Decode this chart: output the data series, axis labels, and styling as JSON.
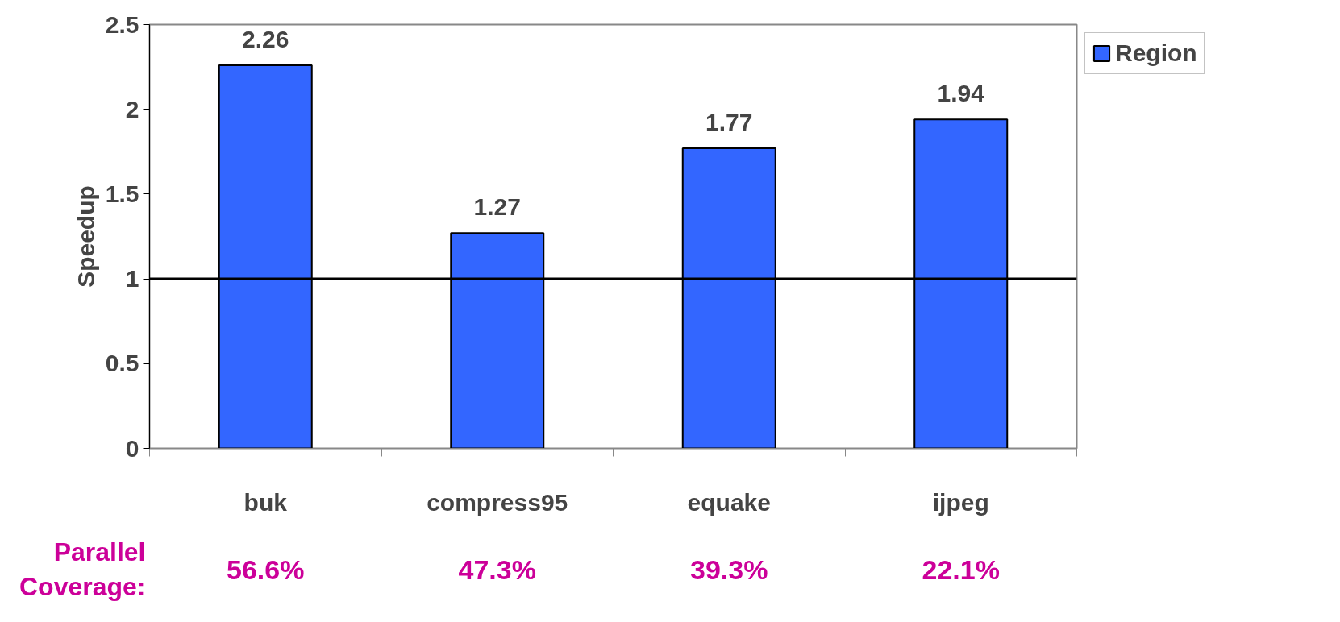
{
  "chart_data": {
    "type": "bar",
    "ylabel": "Speedup",
    "categories": [
      "buk",
      "compress95",
      "equake",
      "ijpeg"
    ],
    "series": [
      {
        "name": "Region",
        "color": "#3366ff",
        "values": [
          2.26,
          1.27,
          1.77,
          1.94
        ]
      }
    ],
    "ylim": [
      0,
      2.5
    ],
    "yticks": [
      0,
      0.5,
      1,
      1.5,
      2,
      2.5
    ],
    "grid": false,
    "legend": "right",
    "data_labels": true,
    "ref_lines": [
      {
        "axis": "y",
        "value": 1,
        "color": "#000000"
      }
    ],
    "annotations": [
      "Parallel Coverage:",
      "56.6%",
      "47.3%",
      "39.3%",
      "22.1%"
    ]
  }
}
